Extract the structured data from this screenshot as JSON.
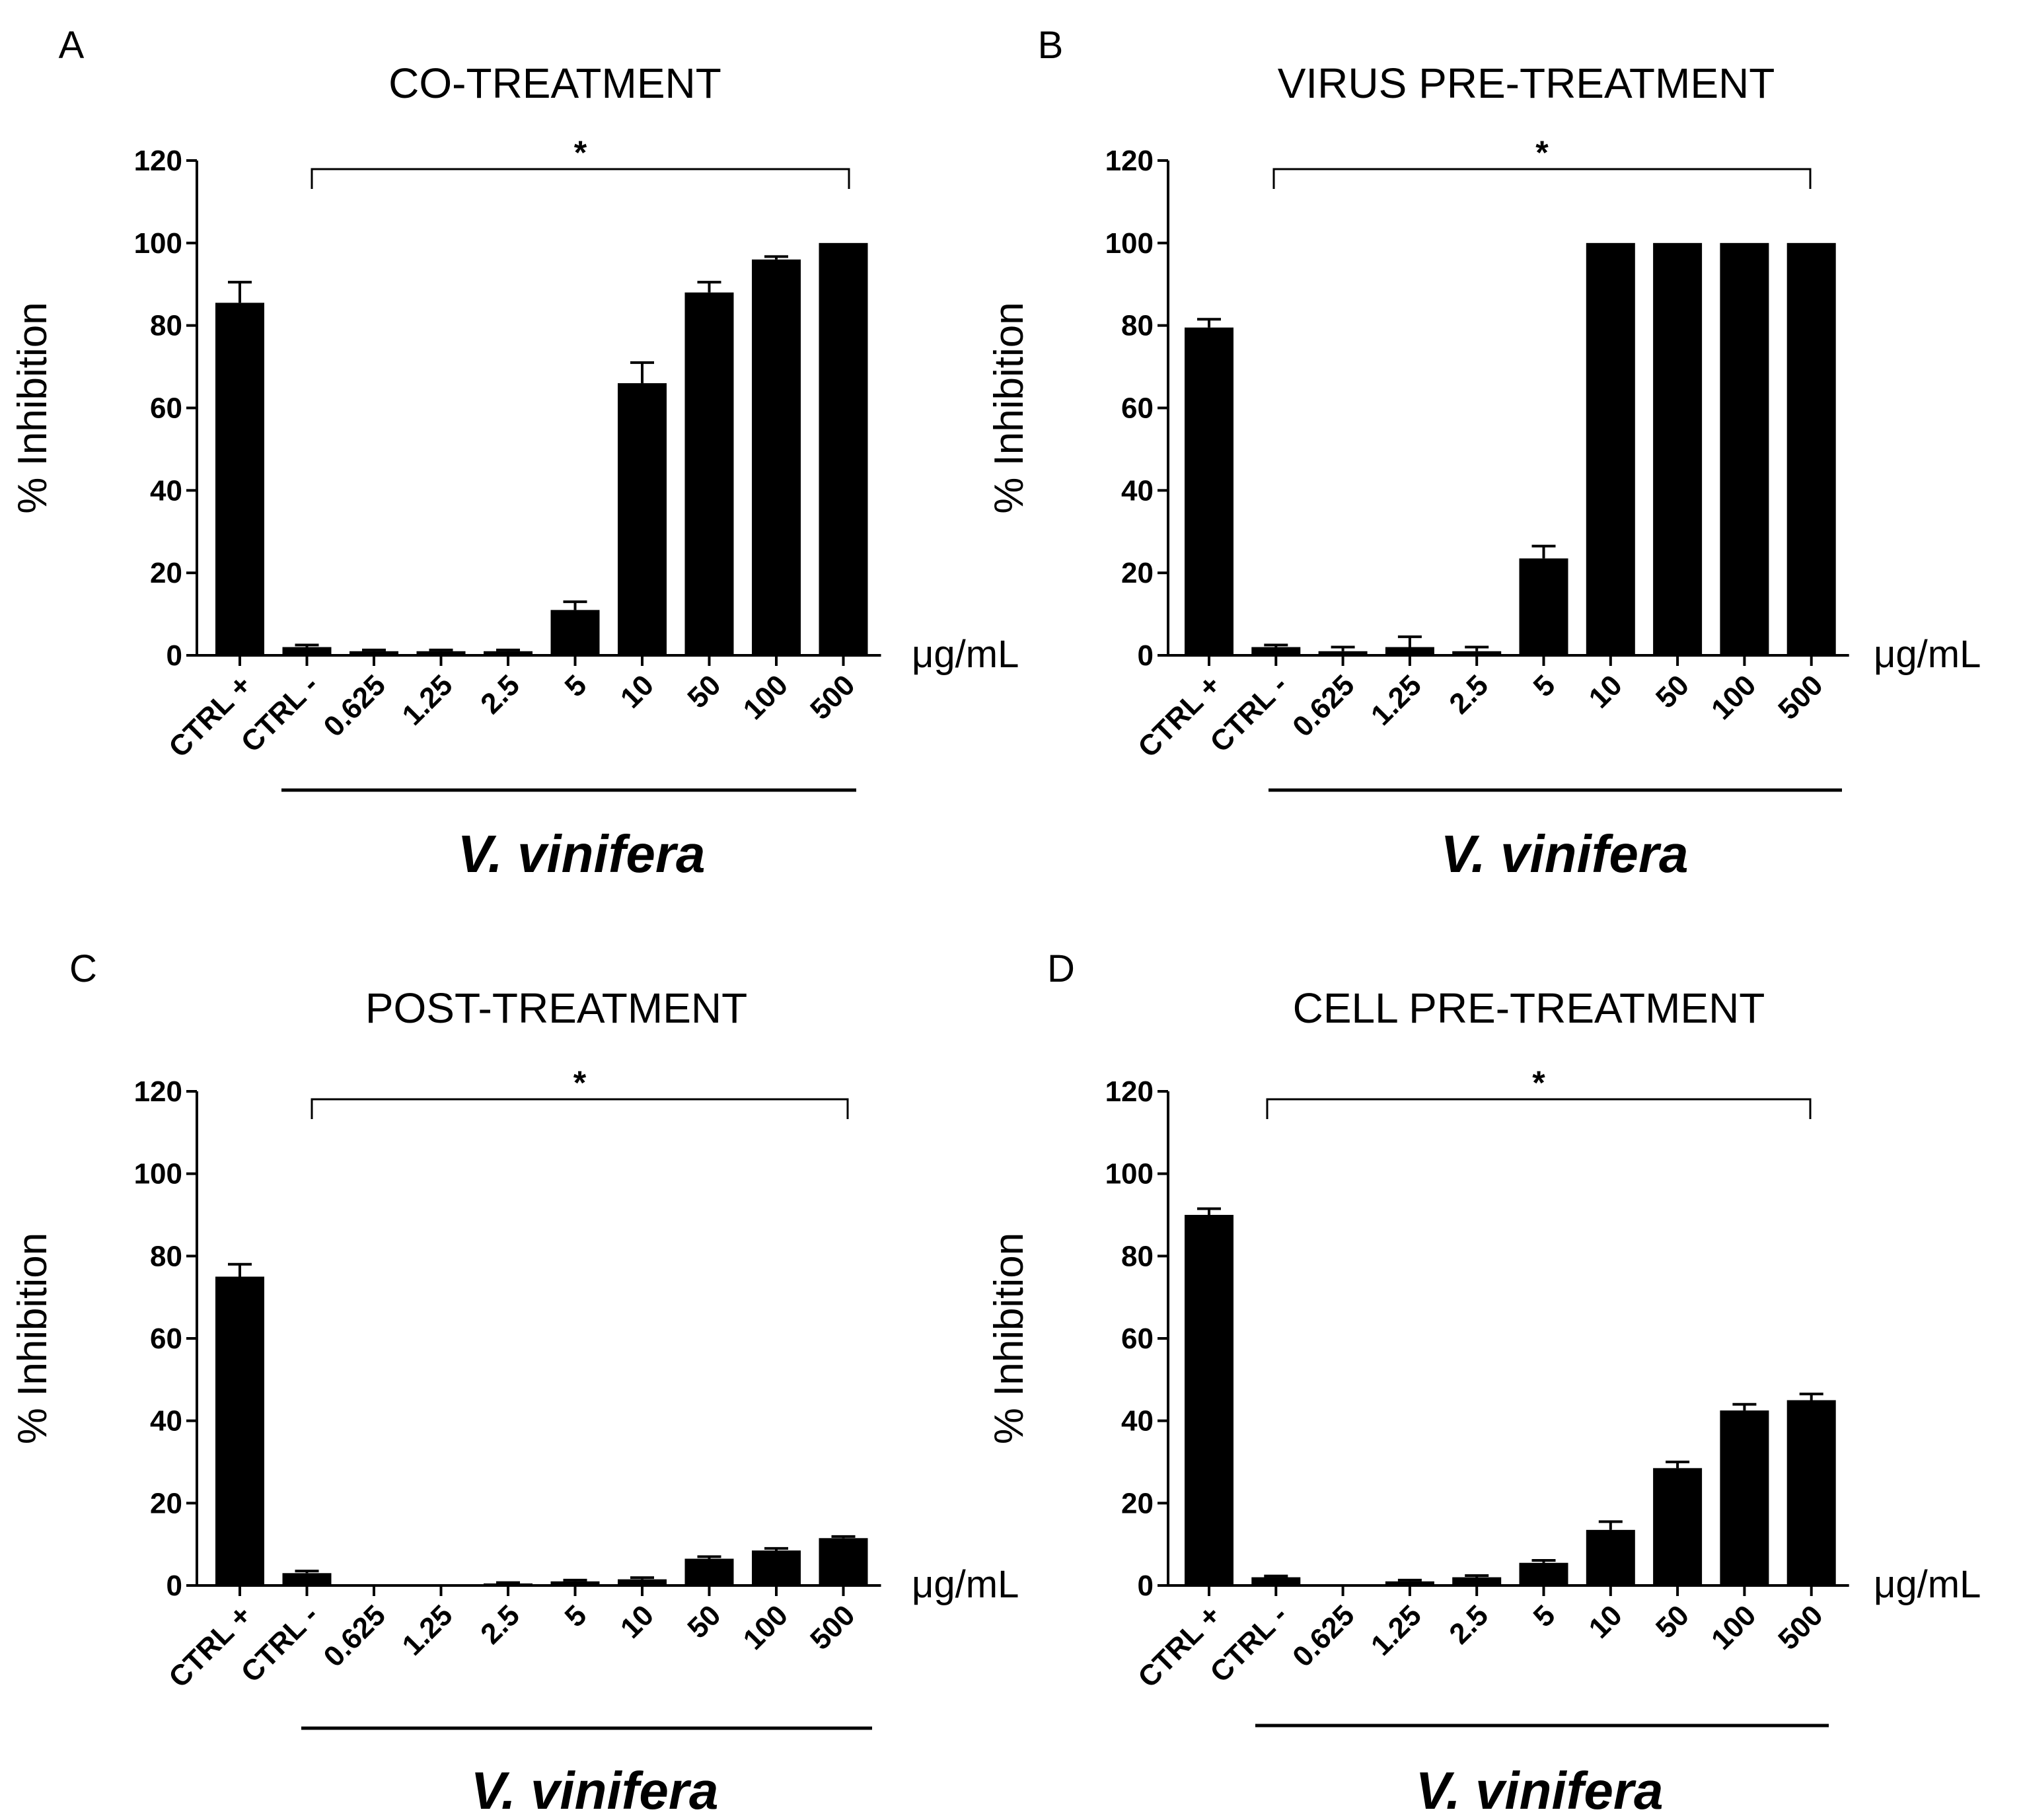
{
  "figure": {
    "ylabel": "% Inhibition",
    "unit": "μg/mL",
    "species": "V. vinifera",
    "significance": "*"
  },
  "chart_data": [
    {
      "type": "bar",
      "panel": "A",
      "title": "CO-TREATMENT",
      "categories": [
        "CTRL +",
        "CTRL -",
        "0.625",
        "1.25",
        "2.5",
        "5",
        "10",
        "50",
        "100",
        "500"
      ],
      "values": [
        85.5,
        2,
        1,
        1,
        1,
        11,
        66,
        88,
        96,
        100
      ],
      "errors": [
        5,
        0.5,
        0.3,
        0.3,
        0.3,
        2,
        5,
        2.5,
        0.7,
        0
      ],
      "ylabel": "% Inhibition",
      "xlabel": "V. vinifera",
      "unit": "μg/mL",
      "ylim": [
        0,
        120
      ],
      "yticks": [
        0,
        20,
        40,
        60,
        80,
        100,
        120
      ],
      "significance": "*"
    },
    {
      "type": "bar",
      "panel": "B",
      "title": "VIRUS PRE-TREATMENT",
      "categories": [
        "CTRL +",
        "CTRL -",
        "0.625",
        "1.25",
        "2.5",
        "5",
        "10",
        "50",
        "100",
        "500"
      ],
      "values": [
        79.5,
        2,
        1,
        2,
        1,
        23.5,
        100,
        100,
        100,
        100
      ],
      "errors": [
        2,
        0.5,
        1,
        2.5,
        1,
        3,
        0,
        0,
        0,
        0
      ],
      "ylabel": "% Inhibition",
      "xlabel": "V. vinifera",
      "unit": "μg/mL",
      "ylim": [
        0,
        120
      ],
      "yticks": [
        0,
        20,
        40,
        60,
        80,
        100,
        120
      ],
      "significance": "*"
    },
    {
      "type": "bar",
      "panel": "C",
      "title": "POST-TREATMENT",
      "categories": [
        "CTRL +",
        "CTRL -",
        "0.625",
        "1.25",
        "2.5",
        "5",
        "10",
        "50",
        "100",
        "500"
      ],
      "values": [
        75,
        3,
        0,
        0,
        0.5,
        1,
        1.5,
        6.5,
        8.5,
        11.5
      ],
      "errors": [
        3,
        0.5,
        0,
        0,
        0.2,
        0.3,
        0.4,
        0.5,
        0.5,
        0.4
      ],
      "ylabel": "% Inhibition",
      "xlabel": "V. vinifera",
      "unit": "μg/mL",
      "ylim": [
        0,
        120
      ],
      "yticks": [
        0,
        20,
        40,
        60,
        80,
        100,
        120
      ],
      "significance": "*"
    },
    {
      "type": "bar",
      "panel": "D",
      "title": "CELL PRE-TREATMENT",
      "categories": [
        "CTRL +",
        "CTRL -",
        "0.625",
        "1.25",
        "2.5",
        "5",
        "10",
        "50",
        "100",
        "500"
      ],
      "values": [
        90,
        2,
        0,
        1,
        2,
        5.5,
        13.5,
        28.5,
        42.5,
        45
      ],
      "errors": [
        1.5,
        0.3,
        0,
        0.3,
        0.4,
        0.6,
        2,
        1.5,
        1.5,
        1.5
      ],
      "ylabel": "% Inhibition",
      "xlabel": "V. vinifera",
      "unit": "μg/mL",
      "ylim": [
        0,
        120
      ],
      "yticks": [
        0,
        20,
        40,
        60,
        80,
        100,
        120
      ],
      "significance": "*"
    }
  ]
}
